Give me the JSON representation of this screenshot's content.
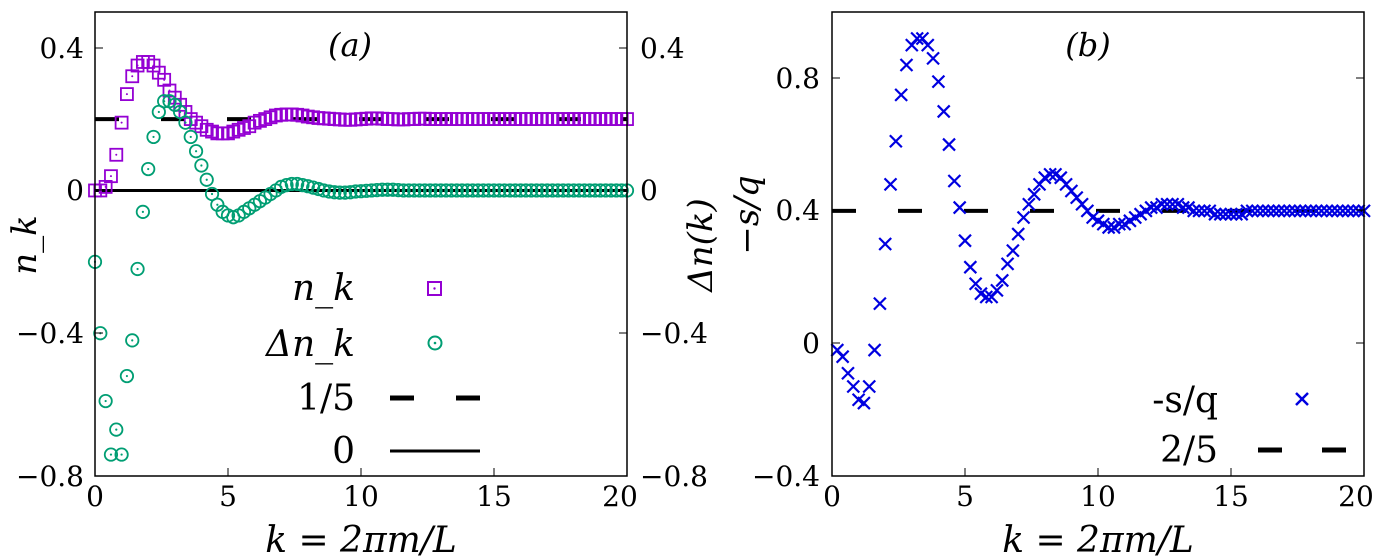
{
  "chart_data": [
    {
      "panel_label": "(a)",
      "type": "scatter",
      "xlabel": "k = 2πm/L",
      "ylabel_left": "n_k",
      "ylabel_right": "Δn(k)",
      "xlim": [
        0,
        20
      ],
      "ylim": [
        -0.8,
        0.5
      ],
      "xticks": [
        "0",
        "5",
        "10",
        "15",
        "20"
      ],
      "yticks_left": [
        "0.4",
        "0",
        "−0.4",
        "−0.8"
      ],
      "yticks_right": [
        "0.4",
        "0",
        "−0.4",
        "−0.8"
      ],
      "legend": [
        {
          "label": "n_k",
          "marker": "square",
          "color": "#9400D3"
        },
        {
          "label": "Δn_k",
          "marker": "circle",
          "color": "#009E73"
        },
        {
          "label": "1/5",
          "style": "dashed",
          "color": "#000000"
        },
        {
          "label": "0",
          "style": "solid",
          "color": "#000000"
        }
      ],
      "series": [
        {
          "name": "n_k",
          "color": "#9400D3",
          "x": [
            0,
            0.2,
            0.4,
            0.6,
            0.8,
            1.0,
            1.2,
            1.4,
            1.6,
            1.8,
            2.0,
            2.2,
            2.4,
            2.6,
            2.8,
            3.0,
            3.2,
            3.4,
            3.6,
            3.8,
            4.0,
            4.2,
            4.4,
            4.6,
            4.8,
            5.0,
            5.2,
            5.4,
            5.6,
            5.8,
            6.0,
            6.2,
            6.4,
            6.6,
            6.8,
            7.0,
            7.2,
            7.4,
            7.6,
            7.8,
            8.0,
            8.2,
            8.4,
            8.6,
            8.8,
            9.0,
            9.2,
            9.4,
            9.6,
            9.8,
            10.0,
            10.2,
            10.4,
            10.6,
            10.8,
            11.0,
            11.2,
            11.4,
            11.6,
            11.8,
            12.0,
            12.2,
            12.4,
            12.6,
            12.8,
            13.0,
            13.2,
            13.4,
            13.6,
            13.8,
            14.0,
            14.2,
            14.4,
            14.6,
            14.8,
            15.0,
            15.2,
            15.4,
            15.6,
            15.8,
            16.0,
            16.2,
            16.4,
            16.6,
            16.8,
            17.0,
            17.2,
            17.4,
            17.6,
            17.8,
            18.0,
            18.2,
            18.4,
            18.6,
            18.8,
            19.0,
            19.2,
            19.4,
            19.6,
            19.8,
            20.0
          ],
          "y": [
            0.0,
            0.0,
            0.01,
            0.04,
            0.1,
            0.19,
            0.27,
            0.32,
            0.35,
            0.36,
            0.36,
            0.35,
            0.33,
            0.31,
            0.28,
            0.26,
            0.24,
            0.22,
            0.2,
            0.19,
            0.18,
            0.17,
            0.165,
            0.16,
            0.16,
            0.16,
            0.165,
            0.17,
            0.175,
            0.18,
            0.19,
            0.195,
            0.2,
            0.205,
            0.21,
            0.212,
            0.213,
            0.213,
            0.212,
            0.21,
            0.207,
            0.205,
            0.203,
            0.202,
            0.201,
            0.2,
            0.199,
            0.198,
            0.198,
            0.199,
            0.2,
            0.201,
            0.202,
            0.202,
            0.201,
            0.2,
            0.2,
            0.199,
            0.199,
            0.2,
            0.2,
            0.201,
            0.201,
            0.2,
            0.2,
            0.2,
            0.2,
            0.2,
            0.2,
            0.2,
            0.2,
            0.2,
            0.2,
            0.2,
            0.2,
            0.2,
            0.2,
            0.2,
            0.2,
            0.2,
            0.2,
            0.2,
            0.2,
            0.2,
            0.2,
            0.2,
            0.2,
            0.2,
            0.2,
            0.2,
            0.2,
            0.2,
            0.2,
            0.2,
            0.2,
            0.2,
            0.2,
            0.2,
            0.2,
            0.2,
            0.2
          ]
        },
        {
          "name": "Δn_k",
          "color": "#009E73",
          "x": [
            0,
            0.2,
            0.4,
            0.6,
            0.8,
            1.0,
            1.2,
            1.4,
            1.6,
            1.8,
            2.0,
            2.2,
            2.4,
            2.6,
            2.8,
            3.0,
            3.2,
            3.4,
            3.6,
            3.8,
            4.0,
            4.2,
            4.4,
            4.6,
            4.8,
            5.0,
            5.2,
            5.4,
            5.6,
            5.8,
            6.0,
            6.2,
            6.4,
            6.6,
            6.8,
            7.0,
            7.2,
            7.4,
            7.6,
            7.8,
            8.0,
            8.2,
            8.4,
            8.6,
            8.8,
            9.0,
            9.2,
            9.4,
            9.6,
            9.8,
            10.0,
            10.2,
            10.4,
            10.6,
            10.8,
            11.0,
            11.2,
            11.4,
            11.6,
            11.8,
            12.0,
            12.2,
            12.4,
            12.6,
            12.8,
            13.0,
            13.2,
            13.4,
            13.6,
            13.8,
            14.0,
            14.2,
            14.4,
            14.6,
            14.8,
            15.0,
            15.2,
            15.4,
            15.6,
            15.8,
            16.0,
            16.2,
            16.4,
            16.6,
            16.8,
            17.0,
            17.2,
            17.4,
            17.6,
            17.8,
            18.0,
            18.2,
            18.4,
            18.6,
            18.8,
            19.0,
            19.2,
            19.4,
            19.6,
            19.8,
            20.0
          ],
          "y": [
            -0.2,
            -0.4,
            -0.59,
            -0.74,
            -0.67,
            -0.74,
            -0.52,
            -0.42,
            -0.22,
            -0.06,
            0.06,
            0.15,
            0.22,
            0.25,
            0.25,
            0.24,
            0.22,
            0.19,
            0.15,
            0.11,
            0.07,
            0.03,
            -0.01,
            -0.04,
            -0.06,
            -0.07,
            -0.075,
            -0.07,
            -0.06,
            -0.05,
            -0.04,
            -0.03,
            -0.02,
            -0.01,
            0.0,
            0.01,
            0.015,
            0.018,
            0.018,
            0.015,
            0.012,
            0.008,
            0.004,
            0.0,
            -0.003,
            -0.005,
            -0.006,
            -0.006,
            -0.005,
            -0.003,
            -0.002,
            -0.001,
            0.0,
            0.001,
            0.002,
            0.002,
            0.002,
            0.001,
            0.0,
            0.0,
            0.0,
            0.0,
            0.0,
            0.0,
            0.0,
            0.0,
            0.0,
            0.0,
            0.0,
            0.0,
            0.0,
            0.0,
            0.0,
            0.0,
            0.0,
            0.0,
            0.0,
            0.0,
            0.0,
            0.0,
            0.0,
            0.0,
            0.0,
            0.0,
            0.0,
            0.0,
            0.0,
            0.0,
            0.0,
            0.0,
            0.0,
            0.0,
            0.0,
            0.0,
            0.0,
            0.0,
            0.0,
            0.0,
            0.0,
            0.0,
            0.0
          ]
        }
      ],
      "reference_lines": [
        {
          "name": "1/5",
          "y": 0.2,
          "style": "dashed"
        },
        {
          "name": "0",
          "y": 0.0,
          "style": "solid"
        }
      ]
    },
    {
      "panel_label": "(b)",
      "type": "scatter",
      "xlabel": "k = 2πm/L",
      "ylabel": "−s/q",
      "xlim": [
        0,
        20
      ],
      "ylim": [
        -0.4,
        1.0
      ],
      "xticks": [
        "0",
        "5",
        "10",
        "15",
        "20"
      ],
      "yticks": [
        "0.8",
        "0.4",
        "0",
        "−0.4"
      ],
      "legend": [
        {
          "label": "-s/q",
          "marker": "x",
          "color": "#0000E0"
        },
        {
          "label": "2/5",
          "style": "dashed",
          "color": "#000000"
        }
      ],
      "series": [
        {
          "name": "-s/q",
          "color": "#0000E0",
          "x": [
            0.2,
            0.4,
            0.6,
            0.8,
            1.0,
            1.2,
            1.4,
            1.6,
            1.8,
            2.0,
            2.2,
            2.4,
            2.6,
            2.8,
            3.0,
            3.2,
            3.4,
            3.6,
            3.8,
            4.0,
            4.2,
            4.4,
            4.6,
            4.8,
            5.0,
            5.2,
            5.4,
            5.6,
            5.8,
            6.0,
            6.2,
            6.4,
            6.6,
            6.8,
            7.0,
            7.2,
            7.4,
            7.6,
            7.8,
            8.0,
            8.2,
            8.4,
            8.6,
            8.8,
            9.0,
            9.2,
            9.4,
            9.6,
            9.8,
            10.0,
            10.2,
            10.4,
            10.6,
            10.8,
            11.0,
            11.2,
            11.4,
            11.6,
            11.8,
            12.0,
            12.2,
            12.4,
            12.6,
            12.8,
            13.0,
            13.2,
            13.4,
            13.6,
            13.8,
            14.0,
            14.2,
            14.4,
            14.6,
            14.8,
            15.0,
            15.2,
            15.4,
            15.6,
            15.8,
            16.0,
            16.2,
            16.4,
            16.6,
            16.8,
            17.0,
            17.2,
            17.4,
            17.6,
            17.8,
            18.0,
            18.2,
            18.4,
            18.6,
            18.8,
            19.0,
            19.2,
            19.4,
            19.6,
            19.8,
            20.0
          ],
          "y": [
            -0.02,
            -0.04,
            -0.09,
            -0.13,
            -0.17,
            -0.18,
            -0.13,
            -0.02,
            0.12,
            0.3,
            0.48,
            0.61,
            0.75,
            0.84,
            0.9,
            0.92,
            0.92,
            0.9,
            0.86,
            0.79,
            0.7,
            0.6,
            0.49,
            0.41,
            0.31,
            0.23,
            0.18,
            0.15,
            0.14,
            0.14,
            0.16,
            0.19,
            0.24,
            0.28,
            0.33,
            0.38,
            0.42,
            0.45,
            0.48,
            0.5,
            0.51,
            0.51,
            0.5,
            0.48,
            0.46,
            0.44,
            0.42,
            0.4,
            0.38,
            0.37,
            0.36,
            0.35,
            0.35,
            0.36,
            0.36,
            0.37,
            0.38,
            0.39,
            0.4,
            0.41,
            0.41,
            0.42,
            0.42,
            0.42,
            0.42,
            0.41,
            0.41,
            0.4,
            0.4,
            0.4,
            0.4,
            0.39,
            0.39,
            0.39,
            0.39,
            0.39,
            0.39,
            0.4,
            0.4,
            0.4,
            0.4,
            0.4,
            0.4,
            0.4,
            0.4,
            0.4,
            0.4,
            0.4,
            0.4,
            0.4,
            0.4,
            0.4,
            0.4,
            0.4,
            0.4,
            0.4,
            0.4,
            0.4,
            0.4,
            0.4
          ]
        }
      ],
      "reference_lines": [
        {
          "name": "2/5",
          "y": 0.4,
          "style": "dashed"
        }
      ]
    }
  ]
}
